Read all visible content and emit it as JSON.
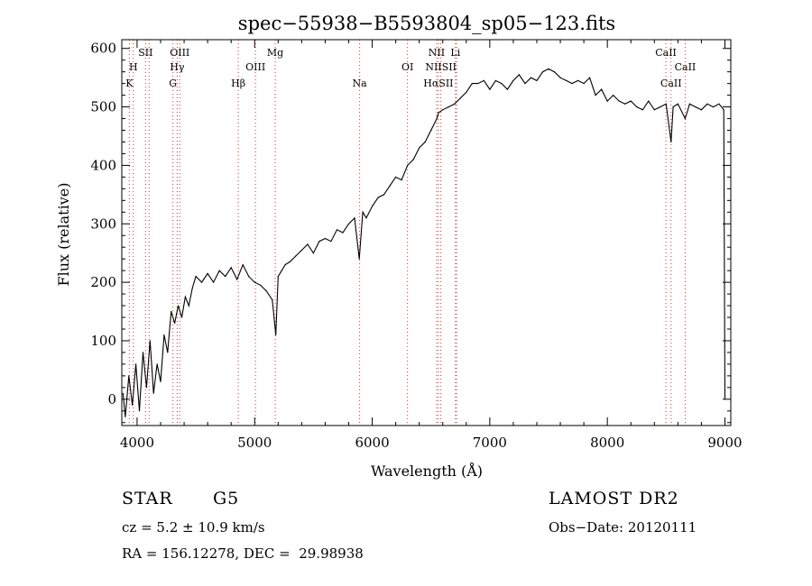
{
  "chart_data": {
    "type": "line",
    "title": "spec−55938−B5593804_sp05−123.fits",
    "xlabel": "Wavelength (Å)",
    "ylabel": "Flux (relative)",
    "xlim": [
      3870,
      9050
    ],
    "ylim": [
      -45,
      615
    ],
    "xticks": [
      4000,
      5000,
      6000,
      7000,
      8000,
      9000
    ],
    "yticks": [
      0,
      100,
      200,
      300,
      400,
      500,
      600
    ],
    "grid": false,
    "series": [
      {
        "x": [
          3880,
          3900,
          3930,
          3960,
          3990,
          4020,
          4050,
          4080,
          4110,
          4140,
          4170,
          4200,
          4230,
          4260,
          4290,
          4320,
          4350,
          4380,
          4410,
          4440,
          4470,
          4500,
          4550,
          4600,
          4650,
          4700,
          4750,
          4800,
          4850,
          4900,
          4950,
          5000,
          5050,
          5100,
          5150,
          5180,
          5200,
          5230,
          5260,
          5300,
          5350,
          5400,
          5450,
          5500,
          5550,
          5600,
          5650,
          5700,
          5750,
          5800,
          5850,
          5890,
          5920,
          5950,
          6000,
          6050,
          6100,
          6150,
          6200,
          6250,
          6300,
          6350,
          6400,
          6450,
          6500,
          6550,
          6563,
          6600,
          6650,
          6700,
          6750,
          6800,
          6850,
          6900,
          6950,
          7000,
          7050,
          7100,
          7150,
          7200,
          7250,
          7300,
          7350,
          7400,
          7450,
          7500,
          7550,
          7600,
          7650,
          7700,
          7750,
          7800,
          7850,
          7900,
          7950,
          8000,
          8050,
          8100,
          8150,
          8200,
          8250,
          8300,
          8350,
          8400,
          8450,
          8500,
          8542,
          8560,
          8600,
          8662,
          8700,
          8750,
          8800,
          8850,
          8900,
          8950,
          8990,
          9000
        ],
        "y": [
          10,
          -30,
          40,
          -10,
          60,
          -20,
          80,
          20,
          100,
          10,
          60,
          30,
          110,
          80,
          150,
          130,
          160,
          140,
          175,
          160,
          190,
          210,
          200,
          215,
          200,
          220,
          210,
          225,
          205,
          230,
          210,
          200,
          195,
          185,
          170,
          110,
          210,
          220,
          230,
          235,
          245,
          255,
          265,
          250,
          270,
          275,
          270,
          290,
          285,
          300,
          310,
          240,
          320,
          310,
          330,
          345,
          350,
          365,
          380,
          375,
          400,
          410,
          430,
          440,
          460,
          480,
          490,
          495,
          500,
          505,
          515,
          525,
          540,
          540,
          545,
          530,
          545,
          540,
          530,
          545,
          555,
          540,
          550,
          545,
          560,
          565,
          560,
          550,
          545,
          540,
          545,
          540,
          550,
          520,
          530,
          510,
          520,
          510,
          505,
          510,
          500,
          495,
          510,
          495,
          500,
          505,
          440,
          500,
          505,
          480,
          505,
          500,
          495,
          505,
          500,
          505,
          495,
          0
        ]
      }
    ],
    "line_markers": [
      {
        "label": "K",
        "x": 3934,
        "row": 3
      },
      {
        "label": "H",
        "x": 3968,
        "row": 2
      },
      {
        "label": "SII",
        "x": 4072,
        "row": 1
      },
      {
        "label": "OIII",
        "x": 4363,
        "row": 1
      },
      {
        "label": "Hγ",
        "x": 4341,
        "row": 2
      },
      {
        "label": "G",
        "x": 4305,
        "row": 3
      },
      {
        "label": "Hβ",
        "x": 4861,
        "row": 3
      },
      {
        "label": "OIII",
        "x": 5007,
        "row": 2
      },
      {
        "label": "Mg",
        "x": 5175,
        "row": 1
      },
      {
        "label": "Na",
        "x": 5893,
        "row": 3
      },
      {
        "label": "OI",
        "x": 6300,
        "row": 2
      },
      {
        "label": "NII",
        "x": 6548,
        "row": 1
      },
      {
        "label": "Li",
        "x": 6708,
        "row": 1
      },
      {
        "label": "NIISII",
        "x": 6584,
        "row": 2
      },
      {
        "label": "HαSII",
        "x": 6563,
        "row": 3
      },
      {
        "label": "CaII",
        "x": 8498,
        "row": 1
      },
      {
        "label": "CaII",
        "x": 8662,
        "row": 2
      },
      {
        "label": "CaII",
        "x": 8542,
        "row": 3
      }
    ],
    "marker_line_positions": [
      3934,
      3968,
      4072,
      4102,
      4305,
      4341,
      4363,
      4861,
      5007,
      5175,
      5893,
      6300,
      6548,
      6563,
      6584,
      6708,
      6717,
      8498,
      8542,
      8662
    ]
  },
  "info": {
    "class_label": "STAR",
    "subclass": "G5",
    "survey": "LAMOST DR2",
    "cz": "cz = 5.2 ± 10.9 km/s",
    "obs_date": "Obs−Date: 20120111",
    "coords": "RA = 156.12278, DEC =  29.98938"
  }
}
